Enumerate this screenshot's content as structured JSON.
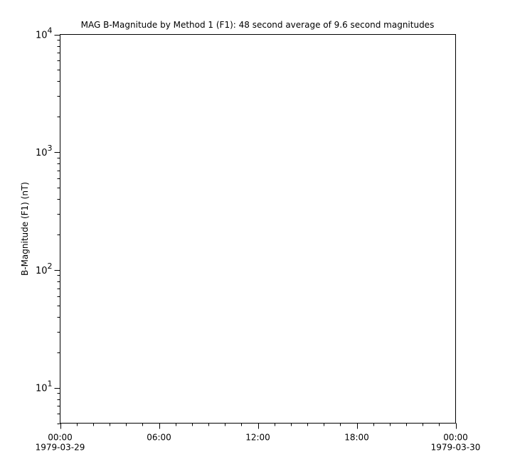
{
  "chart_data": {
    "type": "line",
    "title": "MAG  B-Magnitude by Method 1 (F1): 48 second average of 9.6 second magnitudes",
    "xlabel": "",
    "ylabel": "B-Magnitude (F1) (nT)",
    "yscale": "log",
    "ylim": [
      5,
      10000
    ],
    "xlim": [
      "1979-03-29T00:00",
      "1979-03-30T00:00"
    ],
    "y_ticks": [
      {
        "value": 10,
        "base": "10",
        "exp": "1"
      },
      {
        "value": 100,
        "base": "10",
        "exp": "2"
      },
      {
        "value": 1000,
        "base": "10",
        "exp": "3"
      },
      {
        "value": 10000,
        "base": "10",
        "exp": "4"
      }
    ],
    "x_ticks": [
      {
        "hour": 0,
        "time": "00:00",
        "date": "1979-03-29"
      },
      {
        "hour": 6,
        "time": "06:00",
        "date": ""
      },
      {
        "hour": 12,
        "time": "12:00",
        "date": ""
      },
      {
        "hour": 18,
        "time": "18:00",
        "date": ""
      },
      {
        "hour": 24,
        "time": "00:00",
        "date": "1979-03-30"
      }
    ],
    "series": [],
    "grid": false,
    "axis_color": "#000000"
  }
}
